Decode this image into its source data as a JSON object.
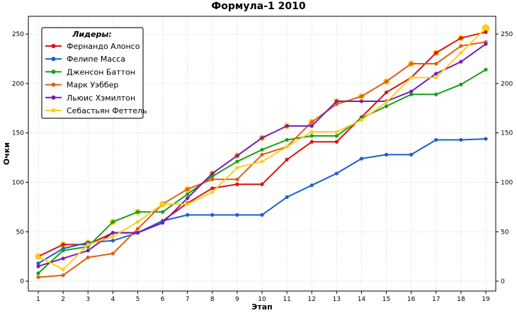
{
  "chart_data": {
    "type": "line",
    "title": "Формула-1 2010",
    "xlabel": "Этап",
    "ylabel": "Очки",
    "x": [
      1,
      2,
      3,
      4,
      5,
      6,
      7,
      8,
      9,
      10,
      11,
      12,
      13,
      14,
      15,
      16,
      17,
      18,
      19
    ],
    "xlim": [
      0.6,
      19.4
    ],
    "ylim": [
      -10,
      268
    ],
    "yticks": [
      0,
      50,
      100,
      150,
      200,
      250
    ],
    "grid": true,
    "right_axis_mirror": true,
    "legend": {
      "title": "Лидеры:",
      "placement": "top-left"
    },
    "series": [
      {
        "name": "Фернандо Алонсо",
        "color": "#dd1111",
        "values": [
          25,
          37,
          37,
          49,
          49,
          61,
          79,
          94,
          98,
          98,
          123,
          141,
          141,
          166,
          191,
          206,
          231,
          246,
          252
        ]
      },
      {
        "name": "Фелипе Масса",
        "color": "#1a5fd1",
        "values": [
          18,
          33,
          39,
          41,
          49,
          61,
          67,
          67,
          67,
          67,
          85,
          97,
          109,
          124,
          128,
          128,
          143,
          143,
          144
        ]
      },
      {
        "name": "Дженсон Баттон",
        "color": "#16a116",
        "values": [
          8,
          31,
          35,
          60,
          70,
          70,
          88,
          106,
          121,
          133,
          143,
          147,
          147,
          165,
          177,
          189,
          189,
          199,
          214
        ]
      },
      {
        "name": "Марк Уэббер",
        "color": "#e06010",
        "values": [
          4,
          6,
          24,
          28,
          53,
          78,
          93,
          103,
          103,
          128,
          136,
          161,
          179,
          187,
          202,
          220,
          220,
          238,
          242
        ]
      },
      {
        "name": "Льюис Хэмилтон",
        "color": "#7a1ab5",
        "values": [
          15,
          23,
          31,
          49,
          49,
          59,
          84,
          109,
          127,
          145,
          157,
          157,
          182,
          182,
          182,
          192,
          210,
          222,
          240
        ]
      },
      {
        "name": "Себастьян Феттель",
        "color": "#ffcc22",
        "values": [
          25,
          12,
          37,
          45,
          60,
          78,
          78,
          90,
          115,
          121,
          136,
          151,
          151,
          163,
          181,
          206,
          206,
          231,
          256
        ]
      }
    ],
    "leader_highlight_color": "#ffcc22"
  }
}
